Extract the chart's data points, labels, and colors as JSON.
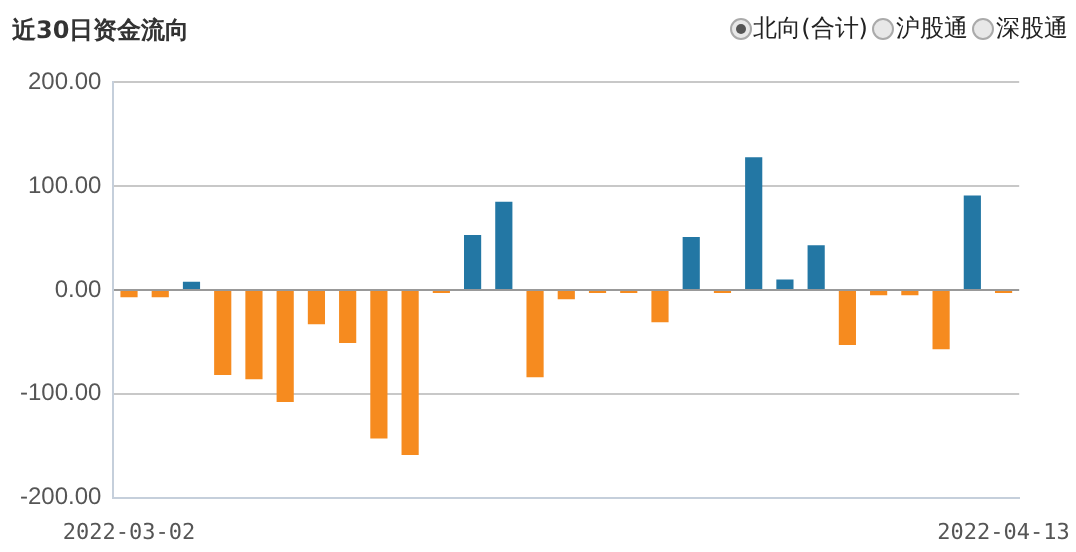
{
  "chart_data": {
    "type": "bar",
    "title": "近30日资金流向",
    "annotations": [
      "北向(合计)",
      "沪股通",
      "深股通"
    ],
    "categories": [
      "2022-03-02",
      null,
      null,
      null,
      null,
      null,
      null,
      null,
      null,
      null,
      null,
      null,
      null,
      null,
      null,
      null,
      null,
      null,
      null,
      null,
      null,
      null,
      null,
      null,
      null,
      null,
      null,
      null,
      "2022-04-13"
    ],
    "values": [
      -7,
      -7,
      8,
      -82,
      -86,
      -108,
      -33,
      -51,
      -143,
      -159,
      -3,
      53,
      85,
      -84,
      -9,
      -3,
      -3,
      -31,
      51,
      -3,
      128,
      10,
      43,
      -53,
      -5,
      -5,
      -57,
      91,
      -3
    ],
    "colors": [
      "#f68b1f",
      "#f68b1f",
      "#2377a4",
      "#f68b1f",
      "#f68b1f",
      "#f68b1f",
      "#f68b1f",
      "#f68b1f",
      "#f68b1f",
      "#f68b1f",
      "#f68b1f",
      "#2377a4",
      "#2377a4",
      "#f68b1f",
      "#f68b1f",
      "#f68b1f",
      "#f68b1f",
      "#f68b1f",
      "#2377a4",
      "#f68b1f",
      "#2377a4",
      "#2377a4",
      "#2377a4",
      "#f68b1f",
      "#f68b1f",
      "#f68b1f",
      "#f68b1f",
      "#2377a4",
      "#f68b1f"
    ],
    "ylim": [
      -200,
      200
    ],
    "yticks": [
      {
        "value": -200,
        "label": "-200.00"
      },
      {
        "value": -100,
        "label": "-100.00"
      },
      {
        "value": 0,
        "label": "0.00"
      },
      {
        "value": 100,
        "label": "100.00"
      },
      {
        "value": 200,
        "label": "200.00"
      }
    ],
    "grid": "y",
    "legend": false
  }
}
